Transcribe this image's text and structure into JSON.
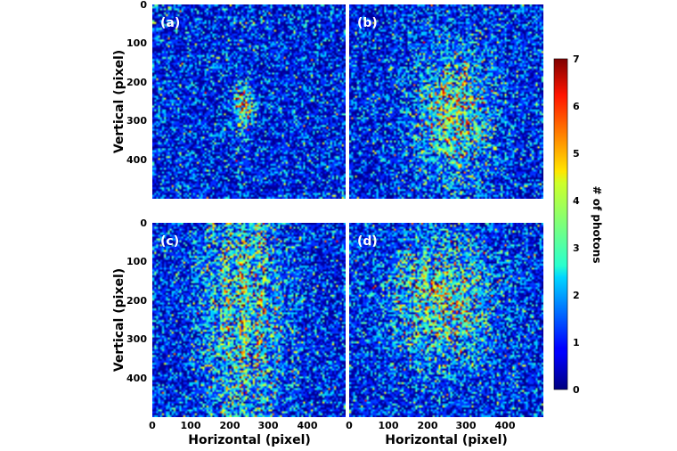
{
  "chart_data": {
    "type": "heatmap",
    "colormap": "jet",
    "background_level": 0.85,
    "panels": [
      {
        "label": "(a)",
        "x_range": [
          0,
          500
        ],
        "y_range": [
          0,
          500
        ],
        "blob": {
          "cx": 235,
          "cy": 265,
          "sx": 16,
          "sy": 36,
          "peak": 3.6
        }
      },
      {
        "label": "(b)",
        "x_range": [
          0,
          500
        ],
        "y_range": [
          0,
          500
        ],
        "blob": {
          "cx": 270,
          "cy": 280,
          "sx": 65,
          "sy": 110,
          "peak": 2.6
        }
      },
      {
        "label": "(c)",
        "x_range": [
          0,
          500
        ],
        "y_range": [
          0,
          500
        ],
        "blob": {
          "cx": 235,
          "cy": 215,
          "sx": 70,
          "sy": 240,
          "peak": 2.8
        },
        "fringes": true
      },
      {
        "label": "(d)",
        "x_range": [
          0,
          500
        ],
        "y_range": [
          0,
          500
        ],
        "blob": {
          "cx": 240,
          "cy": 200,
          "sx": 90,
          "sy": 110,
          "peak": 2.4
        }
      }
    ],
    "x_ticks": [
      "0",
      "100",
      "200",
      "300",
      "400"
    ],
    "y_ticks": [
      "0",
      "100",
      "200",
      "300",
      "400"
    ],
    "xlabel": "Horizontal (pixel)",
    "ylabel": "Vertical (pixel)",
    "colorbar": {
      "label": "# of photons",
      "range": [
        0,
        7
      ],
      "ticks": [
        "0",
        "1",
        "2",
        "3",
        "4",
        "5",
        "6",
        "7"
      ]
    },
    "grid": false
  }
}
